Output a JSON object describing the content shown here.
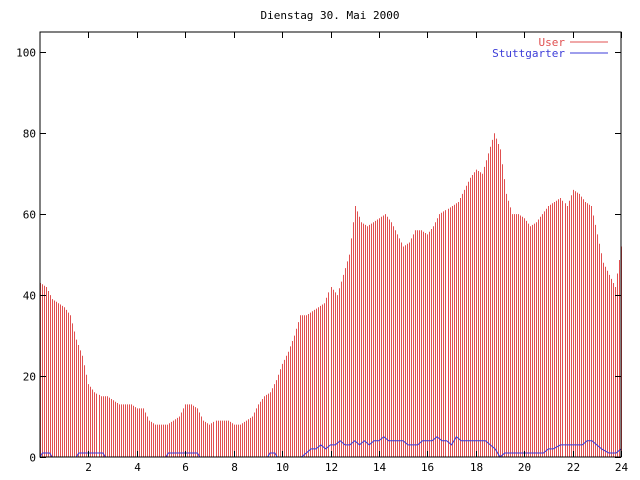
{
  "chart_data": {
    "type": "bar",
    "title": "Dienstag 30. Mai 2000",
    "xlabel": "",
    "ylabel": "",
    "xlim": [
      0,
      24
    ],
    "ylim": [
      0,
      105
    ],
    "x_ticks": [
      "2",
      "4",
      "6",
      "8",
      "10",
      "12",
      "14",
      "16",
      "18",
      "20",
      "22",
      "24"
    ],
    "y_ticks": [
      "0",
      "20",
      "40",
      "60",
      "80",
      "100"
    ],
    "grid": false,
    "legend_position": "top-right",
    "series": [
      {
        "name": "User",
        "style": "impulses",
        "color": "#e05050",
        "points": [
          [
            0.0,
            43
          ],
          [
            0.25,
            42
          ],
          [
            0.5,
            39
          ],
          [
            0.75,
            38
          ],
          [
            1.0,
            37
          ],
          [
            1.25,
            35
          ],
          [
            1.5,
            29
          ],
          [
            1.75,
            25
          ],
          [
            2.0,
            18
          ],
          [
            2.25,
            16
          ],
          [
            2.5,
            15
          ],
          [
            2.75,
            15
          ],
          [
            3.0,
            14
          ],
          [
            3.25,
            13
          ],
          [
            3.5,
            13
          ],
          [
            3.75,
            13
          ],
          [
            4.0,
            12
          ],
          [
            4.25,
            12
          ],
          [
            4.5,
            9
          ],
          [
            4.75,
            8
          ],
          [
            5.0,
            8
          ],
          [
            5.25,
            8
          ],
          [
            5.5,
            9
          ],
          [
            5.75,
            10
          ],
          [
            6.0,
            13
          ],
          [
            6.25,
            13
          ],
          [
            6.5,
            12
          ],
          [
            6.75,
            9
          ],
          [
            7.0,
            8
          ],
          [
            7.25,
            9
          ],
          [
            7.5,
            9
          ],
          [
            7.75,
            9
          ],
          [
            8.0,
            8
          ],
          [
            8.25,
            8
          ],
          [
            8.5,
            9
          ],
          [
            8.75,
            10
          ],
          [
            9.0,
            13
          ],
          [
            9.25,
            15
          ],
          [
            9.5,
            16
          ],
          [
            9.75,
            19
          ],
          [
            10.0,
            23
          ],
          [
            10.25,
            26
          ],
          [
            10.5,
            30
          ],
          [
            10.75,
            35
          ],
          [
            11.0,
            35
          ],
          [
            11.25,
            36
          ],
          [
            11.5,
            37
          ],
          [
            11.75,
            38
          ],
          [
            12.0,
            42
          ],
          [
            12.25,
            40
          ],
          [
            12.5,
            45
          ],
          [
            12.75,
            50
          ],
          [
            13.0,
            62
          ],
          [
            13.25,
            58
          ],
          [
            13.5,
            57
          ],
          [
            13.75,
            58
          ],
          [
            14.0,
            59
          ],
          [
            14.25,
            60
          ],
          [
            14.5,
            58
          ],
          [
            14.75,
            55
          ],
          [
            15.0,
            52
          ],
          [
            15.25,
            53
          ],
          [
            15.5,
            56
          ],
          [
            15.75,
            56
          ],
          [
            16.0,
            55
          ],
          [
            16.25,
            57
          ],
          [
            16.5,
            60
          ],
          [
            16.75,
            61
          ],
          [
            17.0,
            62
          ],
          [
            17.25,
            63
          ],
          [
            17.5,
            66
          ],
          [
            17.75,
            69
          ],
          [
            18.0,
            71
          ],
          [
            18.25,
            70
          ],
          [
            18.5,
            75
          ],
          [
            18.75,
            80
          ],
          [
            19.0,
            76
          ],
          [
            19.25,
            65
          ],
          [
            19.5,
            60
          ],
          [
            19.75,
            60
          ],
          [
            20.0,
            59
          ],
          [
            20.25,
            57
          ],
          [
            20.5,
            58
          ],
          [
            20.75,
            60
          ],
          [
            21.0,
            62
          ],
          [
            21.25,
            63
          ],
          [
            21.5,
            64
          ],
          [
            21.75,
            62
          ],
          [
            22.0,
            66
          ],
          [
            22.25,
            65
          ],
          [
            22.5,
            63
          ],
          [
            22.75,
            62
          ],
          [
            23.0,
            55
          ],
          [
            23.25,
            48
          ],
          [
            23.5,
            45
          ],
          [
            23.75,
            42
          ],
          [
            24.0,
            52
          ]
        ]
      },
      {
        "name": "Stuttgarter",
        "style": "line",
        "color": "#3c3cd8",
        "points": [
          [
            0.0,
            0
          ],
          [
            0.1,
            1
          ],
          [
            0.4,
            1
          ],
          [
            0.5,
            0
          ],
          [
            1.5,
            0
          ],
          [
            1.6,
            1
          ],
          [
            2.6,
            1
          ],
          [
            2.7,
            0
          ],
          [
            5.2,
            0
          ],
          [
            5.3,
            1
          ],
          [
            6.5,
            1
          ],
          [
            6.6,
            0
          ],
          [
            9.4,
            0
          ],
          [
            9.5,
            1
          ],
          [
            9.7,
            1
          ],
          [
            9.8,
            0
          ],
          [
            10.8,
            0
          ],
          [
            11.0,
            1
          ],
          [
            11.2,
            2
          ],
          [
            11.4,
            2
          ],
          [
            11.6,
            3
          ],
          [
            11.8,
            2
          ],
          [
            12.0,
            3
          ],
          [
            12.2,
            3
          ],
          [
            12.4,
            4
          ],
          [
            12.6,
            3
          ],
          [
            12.8,
            3
          ],
          [
            13.0,
            4
          ],
          [
            13.2,
            3
          ],
          [
            13.4,
            4
          ],
          [
            13.6,
            3
          ],
          [
            13.8,
            4
          ],
          [
            14.0,
            4
          ],
          [
            14.2,
            5
          ],
          [
            14.4,
            4
          ],
          [
            14.6,
            4
          ],
          [
            15.0,
            4
          ],
          [
            15.2,
            3
          ],
          [
            15.6,
            3
          ],
          [
            15.8,
            4
          ],
          [
            16.0,
            4
          ],
          [
            16.2,
            4
          ],
          [
            16.4,
            5
          ],
          [
            16.6,
            4
          ],
          [
            16.8,
            4
          ],
          [
            17.0,
            3
          ],
          [
            17.2,
            5
          ],
          [
            17.4,
            4
          ],
          [
            17.6,
            4
          ],
          [
            18.0,
            4
          ],
          [
            18.4,
            4
          ],
          [
            18.6,
            3
          ],
          [
            18.8,
            2
          ],
          [
            19.0,
            0
          ],
          [
            19.2,
            1
          ],
          [
            20.8,
            1
          ],
          [
            21.0,
            2
          ],
          [
            21.2,
            2
          ],
          [
            21.5,
            3
          ],
          [
            22.0,
            3
          ],
          [
            22.4,
            3
          ],
          [
            22.6,
            4
          ],
          [
            22.8,
            4
          ],
          [
            23.0,
            3
          ],
          [
            23.2,
            2
          ],
          [
            23.5,
            1
          ],
          [
            23.8,
            1
          ],
          [
            24.0,
            2
          ]
        ]
      }
    ]
  }
}
